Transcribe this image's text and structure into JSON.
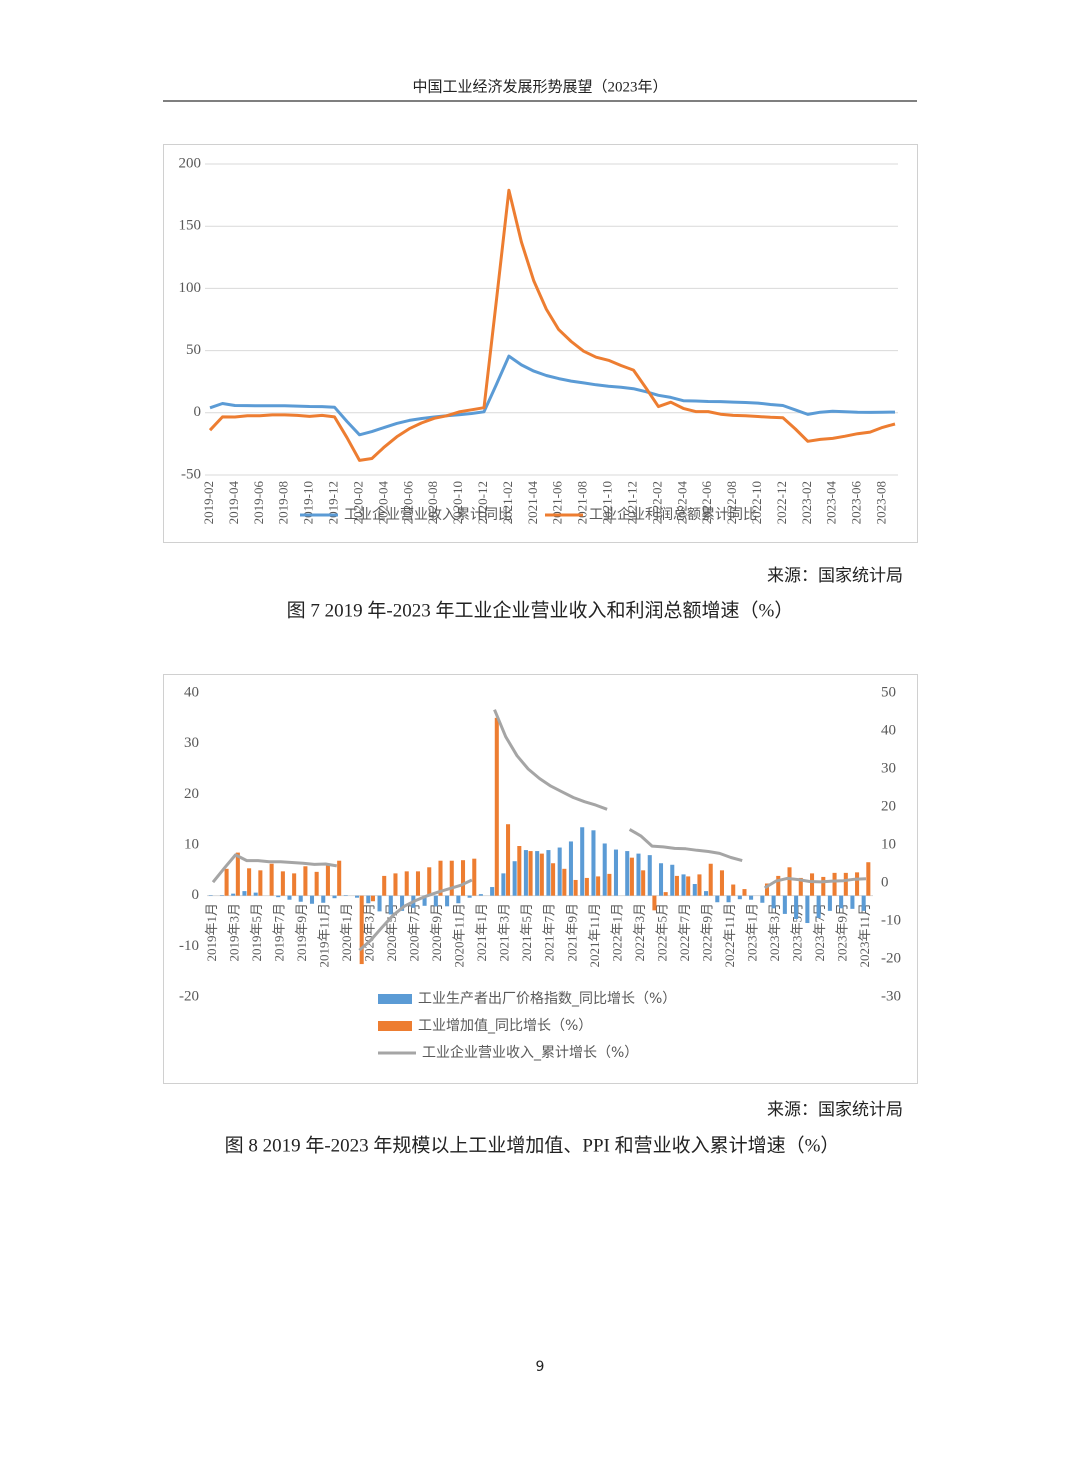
{
  "header": {
    "title": "中国工业经济发展形势展望（2023年）"
  },
  "chart_data": [
    {
      "type": "line",
      "categories": [
        "2019-02",
        null,
        "2019-04",
        null,
        "2019-06",
        null,
        "2019-08",
        null,
        "2019-10",
        null,
        "2019-12",
        null,
        "2020-02",
        null,
        "2020-04",
        null,
        "2020-06",
        null,
        "2020-08",
        null,
        "2020-10",
        null,
        "2020-12",
        null,
        "2021-02",
        null,
        "2021-04",
        null,
        "2021-06",
        null,
        "2021-08",
        null,
        "2021-10",
        null,
        "2021-12",
        null,
        "2022-02",
        null,
        "2022-04",
        null,
        "2022-06",
        null,
        "2022-08",
        null,
        "2022-10",
        null,
        "2022-12",
        null,
        "2023-02",
        null,
        "2023-04",
        null,
        "2023-06",
        null,
        "2023-08",
        null
      ],
      "series": [
        {
          "name": "工业企业营业收入累计同比",
          "color": "#5b9bd5",
          "values": [
            4,
            7.5,
            5.9,
            5.8,
            5.6,
            5.7,
            5.6,
            5.4,
            5.1,
            5.0,
            4.5,
            -7,
            -17.7,
            -15.1,
            -11.7,
            -8.5,
            -6.1,
            -4.6,
            -3.4,
            -2.4,
            -1.5,
            -0.6,
            0.8,
            23,
            45.6,
            38.5,
            33.5,
            30,
            27.5,
            25.5,
            24,
            22.5,
            21.4,
            20.5,
            19.4,
            17,
            14.1,
            12.4,
            9.7,
            9.5,
            9.1,
            9.0,
            8.6,
            8.3,
            7.8,
            6.7,
            5.9,
            2.3,
            -1.3,
            0.5,
            1.2,
            0.9,
            0.4,
            0.3,
            0.5,
            0.6
          ]
        },
        {
          "name": "工业企业利润总额累计同比",
          "color": "#ed7d31",
          "values": [
            -14,
            -3.3,
            -3.4,
            -2.3,
            -2.4,
            -1.7,
            -1.7,
            -2.1,
            -2.9,
            -2.1,
            -3.3,
            -20,
            -38.3,
            -36.7,
            -27.4,
            -19.3,
            -12.8,
            -8.1,
            -4.4,
            -2.4,
            0.7,
            2.4,
            4.1,
            91,
            178.9,
            137.3,
            106,
            83.4,
            66.9,
            57.3,
            49.5,
            44.7,
            42.2,
            38,
            34.3,
            20,
            5,
            8.5,
            3.5,
            1,
            1,
            -1.1,
            -2.1,
            -2.3,
            -3,
            -3.6,
            -4,
            -13,
            -22.9,
            -21.4,
            -20.6,
            -18.8,
            -16.8,
            -15.5,
            -11.7,
            -9
          ]
        }
      ],
      "ylim": [
        -50,
        200
      ],
      "yticks": [
        -50,
        0,
        50,
        100,
        150,
        200
      ],
      "grid": true,
      "legend": "bottom"
    },
    {
      "type": "combo",
      "categories": [
        "2019年1月",
        null,
        "2019年3月",
        null,
        "2019年5月",
        null,
        "2019年7月",
        null,
        "2019年9月",
        null,
        "2019年11月",
        null,
        "2020年1月",
        null,
        "2020年3月",
        null,
        "2020年5月",
        null,
        "2020年7月",
        null,
        "2020年9月",
        null,
        "2020年11月",
        null,
        "2021年1月",
        null,
        "2021年3月",
        null,
        "2021年5月",
        null,
        "2021年7月",
        null,
        "2021年9月",
        null,
        "2021年11月",
        null,
        "2022年1月",
        null,
        "2022年3月",
        null,
        "2022年5月",
        null,
        "2022年7月",
        null,
        "2022年9月",
        null,
        "2022年11月",
        null,
        "2023年1月",
        null,
        "2023年3月",
        null,
        "2023年5月",
        null,
        "2023年7月",
        null,
        "2023年9月",
        null,
        "2023年11月"
      ],
      "series": [
        {
          "name": "工业生产者出厂价格指数_同比增长（%）",
          "type": "bar",
          "color": "#5b9bd5",
          "values": [
            0.1,
            0.1,
            0.4,
            0.9,
            0.6,
            0,
            -0.3,
            -0.8,
            -1.2,
            -1.6,
            -1.4,
            -0.5,
            0.1,
            -0.4,
            -1.5,
            -3.1,
            -3.7,
            -3.0,
            -2.4,
            -2.0,
            -2.1,
            -2.1,
            -1.5,
            -0.4,
            0.3,
            1.7,
            4.4,
            6.8,
            9.0,
            8.8,
            9.0,
            9.5,
            10.7,
            13.5,
            12.9,
            10.3,
            9.1,
            8.8,
            8.3,
            8.0,
            6.4,
            6.1,
            4.2,
            2.3,
            0.9,
            -1.3,
            -1.3,
            -0.7,
            -0.8,
            -1.4,
            -2.5,
            -3.6,
            -4.6,
            -5.4,
            -4.4,
            -3.0,
            -2.5,
            -2.6,
            -3.0
          ]
        },
        {
          "name": "工业增加值_同比增长（%）",
          "type": "bar",
          "color": "#ed7d31",
          "values": [
            null,
            5.3,
            8.5,
            5.4,
            5.0,
            6.3,
            4.8,
            4.4,
            5.8,
            4.7,
            6.2,
            6.9,
            null,
            -13.5,
            -1.1,
            3.9,
            4.4,
            4.8,
            4.8,
            5.6,
            6.9,
            6.9,
            7.0,
            7.3,
            null,
            35.1,
            14.1,
            9.8,
            8.8,
            8.3,
            6.4,
            5.3,
            3.1,
            3.5,
            3.8,
            4.3,
            null,
            7.5,
            5.0,
            -2.9,
            0.7,
            3.9,
            3.8,
            4.2,
            6.3,
            5.0,
            2.2,
            1.3,
            null,
            2.4,
            3.9,
            5.6,
            3.5,
            4.4,
            3.7,
            4.5,
            4.5,
            4.6,
            6.6
          ]
        },
        {
          "name": "工业企业营业收入_累计增长（%）",
          "type": "line",
          "axis": "y2",
          "color": "#a5a5a5",
          "values": [
            0.2,
            3.9,
            7.4,
            5.9,
            5.9,
            5.6,
            5.6,
            5.4,
            5.2,
            4.9,
            5.0,
            4.5,
            null,
            -17.7,
            -15.1,
            -11.7,
            -8.5,
            -6.1,
            -4.6,
            -3.4,
            -2.4,
            -1.5,
            -0.6,
            0.8,
            null,
            45.6,
            38.5,
            33.5,
            30,
            27.5,
            25.5,
            24,
            22.5,
            21.4,
            20.5,
            19.4,
            null,
            14.1,
            12.4,
            9.7,
            9.5,
            9.1,
            9.0,
            8.6,
            8.3,
            7.8,
            6.7,
            5.9,
            null,
            -1.3,
            0.5,
            1.2,
            0.9,
            0.4,
            0.3,
            0.5,
            0.6,
            1.0,
            1.1
          ]
        }
      ],
      "ylim": [
        -20,
        40
      ],
      "yticks": [
        -20,
        -10,
        0,
        10,
        20,
        30,
        40
      ],
      "y2lim": [
        -30,
        50
      ],
      "y2ticks": [
        -30,
        -20,
        -10,
        0,
        10,
        20,
        30,
        40,
        50
      ],
      "grid": false,
      "legend": "bottom"
    }
  ],
  "sources": [
    "来源：国家统计局",
    "来源：国家统计局"
  ],
  "captions": [
    "图 7 2019 年-2023 年工业企业营业收入和利润总额增速（%）",
    "图 8 2019 年-2023 年规模以上工业增加值、PPI 和营业收入累计增速（%）"
  ],
  "page_number": "9"
}
